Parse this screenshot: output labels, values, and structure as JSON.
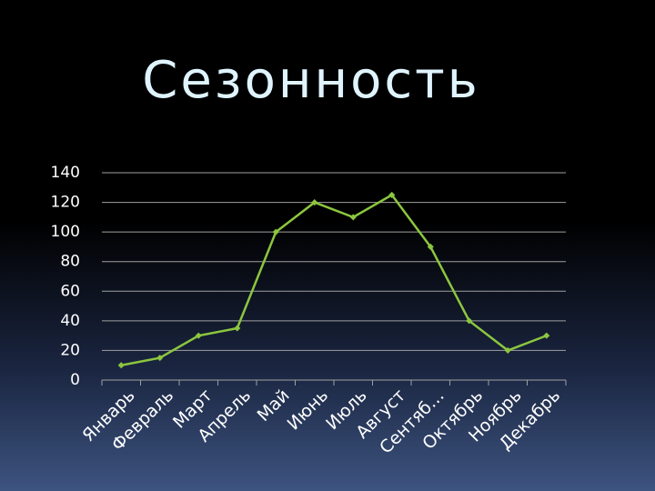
{
  "chart_data": {
    "type": "line",
    "title": "Сезонность",
    "categories": [
      "Январь",
      "Февраль",
      "Март",
      "Апрель",
      "Май",
      "Июнь",
      "Июль",
      "Август",
      "Сентяб…",
      "Октябрь",
      "Ноябрь",
      "Декабрь"
    ],
    "values": [
      10,
      15,
      30,
      35,
      100,
      120,
      110,
      125,
      90,
      40,
      20,
      30
    ],
    "color": "#8cc63f",
    "ylim": [
      0,
      140
    ],
    "yticks": [
      0,
      20,
      40,
      60,
      80,
      100,
      120,
      140
    ],
    "grid": true
  }
}
